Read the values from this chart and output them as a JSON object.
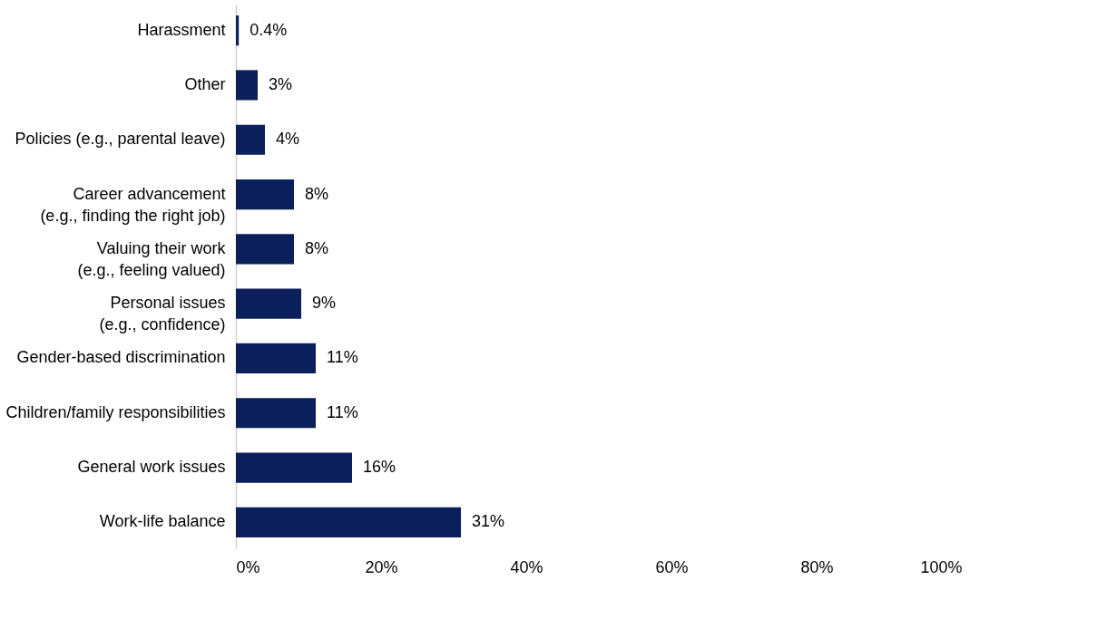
{
  "chart_data": {
    "type": "bar",
    "orientation": "horizontal",
    "categories": [
      "Harassment",
      "Other",
      "Policies (e.g., parental leave)",
      "Career advancement\n(e.g., finding the right job)",
      "Valuing their work\n(e.g., feeling valued)",
      "Personal issues\n(e.g., confidence)",
      "Gender-based discrimination",
      "Children/family responsibilities",
      "General work issues",
      "Work-life balance"
    ],
    "values": [
      0.4,
      3,
      4,
      8,
      8,
      9,
      11,
      11,
      16,
      31
    ],
    "color": "#0b1f5b",
    "value_labels": [
      "0.4%",
      "3%",
      "4%",
      "8%",
      "8%",
      "9%",
      "11%",
      "11%",
      "16%",
      "31%"
    ],
    "xlim": [
      0,
      100
    ],
    "xticks": [
      {
        "value": 0,
        "label": "0%"
      },
      {
        "value": 20,
        "label": "20%"
      },
      {
        "value": 40,
        "label": "40%"
      },
      {
        "value": 60,
        "label": "60%"
      },
      {
        "value": 80,
        "label": "80%"
      },
      {
        "value": 100,
        "label": "100%"
      }
    ],
    "grid": false
  }
}
